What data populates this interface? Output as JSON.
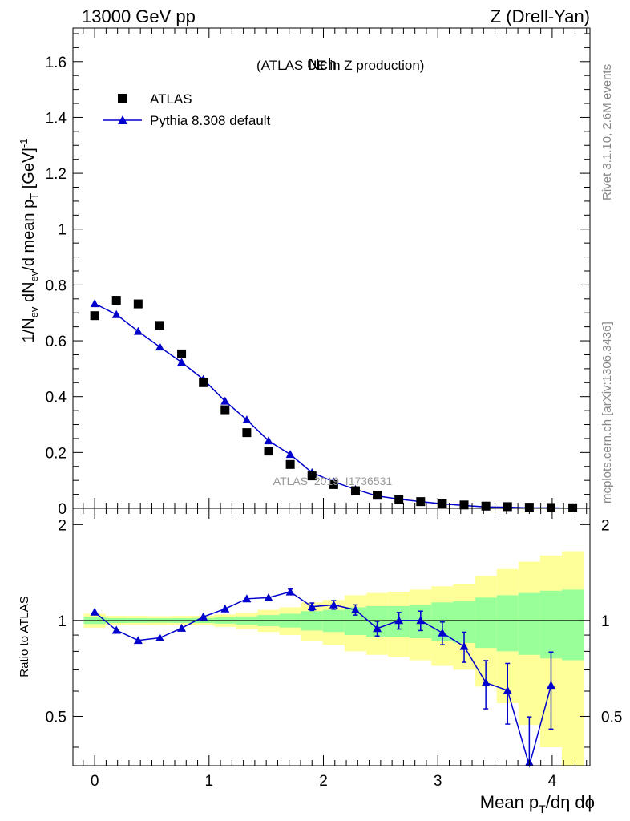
{
  "header": {
    "energy_label": "13000 GeV pp",
    "process_label": "Z (Drell-Yan)"
  },
  "side_labels": {
    "rivet": "Rivet 3.1.10,  2.6M events",
    "mcplots": "mcplots.cern.ch [arXiv:1306.3436]"
  },
  "chart_data": [
    {
      "type": "scatter",
      "panel": "main",
      "title": "Nch",
      "subtitle": "(ATLAS UE in Z production)",
      "watermark": "ATLAS_2019_I1736531",
      "ylabel": "1/N_ev dN_ev/d mean p_T [GeV]^-1",
      "xlim": [
        -0.19,
        4.33
      ],
      "ylim": [
        0,
        1.72
      ],
      "xticks": [
        0,
        1,
        2,
        3,
        4
      ],
      "yticks": [
        0,
        0.2,
        0.4,
        0.6,
        0.8,
        1,
        1.2,
        1.4,
        1.6
      ],
      "ytick_labels": [
        "0",
        "0.2",
        "0.4",
        "0.6",
        "0.8",
        "1",
        "1.2",
        "1.4",
        "1.6"
      ],
      "legend_position": "top-left",
      "series": [
        {
          "name": "ATLAS",
          "color": "#000000",
          "marker": "square",
          "x": [
            0.0,
            0.19,
            0.38,
            0.57,
            0.76,
            0.95,
            1.14,
            1.33,
            1.52,
            1.71,
            1.9,
            2.09,
            2.28,
            2.47,
            2.66,
            2.85,
            3.04,
            3.23,
            3.42,
            3.61,
            3.8,
            3.99,
            4.18
          ],
          "y": [
            0.69,
            0.745,
            0.732,
            0.655,
            0.553,
            0.45,
            0.353,
            0.271,
            0.205,
            0.157,
            0.116,
            0.085,
            0.063,
            0.047,
            0.033,
            0.024,
            0.017,
            0.012,
            0.008,
            0.006,
            0.004,
            0.003,
            0.002
          ]
        },
        {
          "name": "Pythia 8.308 default",
          "color": "#0000cc",
          "marker": "triangle",
          "x": [
            0.0,
            0.19,
            0.38,
            0.57,
            0.76,
            0.95,
            1.14,
            1.33,
            1.52,
            1.71,
            1.9,
            2.09,
            2.28,
            2.47,
            2.66,
            2.85,
            3.04,
            3.23,
            3.42,
            3.61,
            3.8,
            3.99,
            4.18
          ],
          "y": [
            0.733,
            0.694,
            0.634,
            0.578,
            0.523,
            0.462,
            0.384,
            0.317,
            0.242,
            0.193,
            0.128,
            0.095,
            0.068,
            0.044,
            0.033,
            0.024,
            0.016,
            0.01,
            0.005,
            0.004,
            0.0014,
            0.0019,
            0.0
          ]
        }
      ]
    },
    {
      "type": "line",
      "panel": "ratio",
      "ylabel": "Ratio to ATLAS",
      "xlabel": "Mean p_T/dη dϕ",
      "xlim": [
        -0.19,
        4.33
      ],
      "ylim": [
        0.35,
        2.25
      ],
      "xticks": [
        0,
        1,
        2,
        3,
        4
      ],
      "xtick_labels": [
        "0",
        "1",
        "2",
        "3",
        "4"
      ],
      "yticks": [
        0.5,
        1,
        2
      ],
      "ytick_labels": [
        "0.5",
        "1",
        "2"
      ],
      "reference_line": 1,
      "bands": {
        "bin_edges": [
          -0.095,
          0.095,
          0.285,
          0.475,
          0.665,
          0.855,
          1.045,
          1.235,
          1.425,
          1.615,
          1.805,
          1.995,
          2.185,
          2.375,
          2.565,
          2.755,
          2.945,
          3.135,
          3.325,
          3.515,
          3.705,
          3.895,
          4.085,
          4.275
        ],
        "inner_color": "#99ff99",
        "outer_color": "#ffff99",
        "inner_low": [
          0.975,
          0.982,
          0.983,
          0.984,
          0.983,
          0.982,
          0.977,
          0.97,
          0.96,
          0.95,
          0.93,
          0.92,
          0.9,
          0.89,
          0.89,
          0.88,
          0.86,
          0.85,
          0.82,
          0.8,
          0.78,
          0.76,
          0.75
        ],
        "inner_high": [
          1.025,
          1.018,
          1.017,
          1.016,
          1.017,
          1.018,
          1.023,
          1.03,
          1.04,
          1.05,
          1.07,
          1.08,
          1.1,
          1.11,
          1.11,
          1.12,
          1.14,
          1.15,
          1.18,
          1.2,
          1.22,
          1.24,
          1.25
        ],
        "outer_low": [
          0.95,
          0.965,
          0.966,
          0.968,
          0.966,
          0.965,
          0.955,
          0.94,
          0.92,
          0.9,
          0.86,
          0.84,
          0.8,
          0.78,
          0.77,
          0.75,
          0.72,
          0.7,
          0.62,
          0.55,
          0.47,
          0.4,
          0.35
        ],
        "outer_high": [
          1.05,
          1.035,
          1.034,
          1.032,
          1.034,
          1.035,
          1.045,
          1.06,
          1.08,
          1.1,
          1.14,
          1.16,
          1.2,
          1.22,
          1.23,
          1.25,
          1.28,
          1.3,
          1.38,
          1.45,
          1.53,
          1.6,
          1.65
        ]
      },
      "series": [
        {
          "name": "Pythia 8.308 default / ATLAS",
          "color": "#0000cc",
          "marker": "triangle",
          "x": [
            0.0,
            0.19,
            0.38,
            0.57,
            0.76,
            0.95,
            1.14,
            1.33,
            1.52,
            1.71,
            1.9,
            2.09,
            2.28,
            2.47,
            2.66,
            2.85,
            3.04,
            3.23,
            3.42,
            3.61,
            3.8,
            3.99
          ],
          "y": [
            1.063,
            0.932,
            0.866,
            0.882,
            0.946,
            1.027,
            1.088,
            1.17,
            1.18,
            1.23,
            1.105,
            1.12,
            1.08,
            0.944,
            1.0,
            1.0,
            0.914,
            0.829,
            0.638,
            0.603,
            0.338,
            0.626
          ],
          "yerr": [
            0.005,
            0.005,
            0.005,
            0.005,
            0.006,
            0.008,
            0.012,
            0.015,
            0.02,
            0.025,
            0.03,
            0.035,
            0.04,
            0.05,
            0.06,
            0.07,
            0.075,
            0.09,
            0.11,
            0.13,
            0.16,
            0.17
          ]
        }
      ]
    }
  ]
}
